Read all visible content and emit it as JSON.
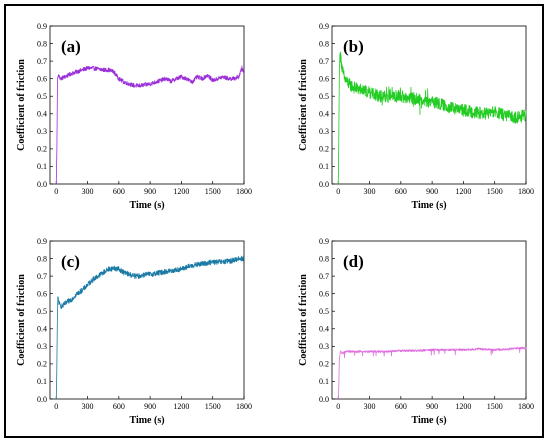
{
  "chart_data": [
    {
      "type": "line",
      "panel_label": "(a)",
      "xlabel": "Time (s)",
      "ylabel": "Coefficient of friction",
      "xlim": [
        -60,
        1800
      ],
      "ylim": [
        0.0,
        0.9
      ],
      "x_ticks": [
        "0",
        "300",
        "600",
        "900",
        "1200",
        "1500",
        "1800"
      ],
      "y_ticks": [
        "0.0",
        "0.1",
        "0.2",
        "0.3",
        "0.4",
        "0.5",
        "0.6",
        "0.7",
        "0.8",
        "0.9"
      ],
      "color": "#9b30d9",
      "noise": 0.012,
      "series": [
        {
          "x": [
            0,
            6,
            12,
            20,
            40,
            80,
            150,
            200,
            250,
            300,
            350,
            400,
            450,
            500,
            550,
            600,
            650,
            700,
            750,
            800,
            850,
            900,
            950,
            1000,
            1050,
            1100,
            1150,
            1200,
            1250,
            1300,
            1350,
            1400,
            1450,
            1500,
            1550,
            1600,
            1650,
            1700,
            1750,
            1780,
            1800
          ],
          "y": [
            0.0,
            0.2,
            0.6,
            0.62,
            0.6,
            0.61,
            0.63,
            0.64,
            0.65,
            0.66,
            0.66,
            0.655,
            0.65,
            0.65,
            0.64,
            0.6,
            0.58,
            0.57,
            0.56,
            0.56,
            0.565,
            0.57,
            0.58,
            0.59,
            0.6,
            0.585,
            0.6,
            0.61,
            0.6,
            0.58,
            0.61,
            0.6,
            0.62,
            0.59,
            0.6,
            0.61,
            0.6,
            0.6,
            0.61,
            0.66,
            0.63
          ]
        }
      ]
    },
    {
      "type": "line",
      "panel_label": "(b)",
      "xlabel": "Time (s)",
      "ylabel": "Coefficient of friction",
      "xlim": [
        -60,
        1800
      ],
      "ylim": [
        0.0,
        0.9
      ],
      "x_ticks": [
        "0",
        "300",
        "600",
        "900",
        "1200",
        "1500",
        "1800"
      ],
      "y_ticks": [
        "0.0",
        "0.1",
        "0.2",
        "0.3",
        "0.4",
        "0.5",
        "0.6",
        "0.7",
        "0.8",
        "0.9"
      ],
      "color": "#22cc22",
      "noise": 0.035,
      "series": [
        {
          "x": [
            0,
            5,
            10,
            15,
            25,
            40,
            60,
            100,
            150,
            200,
            300,
            400,
            500,
            600,
            700,
            800,
            850,
            900,
            950,
            1000,
            1100,
            1200,
            1300,
            1400,
            1500,
            1600,
            1700,
            1800
          ],
          "y": [
            0.0,
            0.25,
            0.6,
            0.73,
            0.72,
            0.65,
            0.6,
            0.57,
            0.55,
            0.54,
            0.52,
            0.5,
            0.5,
            0.5,
            0.49,
            0.48,
            0.47,
            0.47,
            0.46,
            0.45,
            0.43,
            0.42,
            0.41,
            0.4,
            0.41,
            0.39,
            0.38,
            0.39
          ]
        }
      ]
    },
    {
      "type": "line",
      "panel_label": "(c)",
      "xlabel": "Time (s)",
      "ylabel": "Coefficient of friction",
      "xlim": [
        -60,
        1800
      ],
      "ylim": [
        0.0,
        0.9
      ],
      "x_ticks": [
        "0",
        "300",
        "600",
        "900",
        "1200",
        "1500",
        "1800"
      ],
      "y_ticks": [
        "0.0",
        "0.1",
        "0.2",
        "0.3",
        "0.4",
        "0.5",
        "0.6",
        "0.7",
        "0.8",
        "0.9"
      ],
      "color": "#1a7aa5",
      "noise": 0.015,
      "series": [
        {
          "x": [
            0,
            5,
            10,
            15,
            25,
            40,
            60,
            100,
            150,
            200,
            250,
            300,
            350,
            400,
            450,
            500,
            550,
            600,
            650,
            700,
            750,
            800,
            850,
            900,
            1000,
            1100,
            1200,
            1300,
            1400,
            1500,
            1600,
            1700,
            1750,
            1800
          ],
          "y": [
            0.0,
            0.15,
            0.42,
            0.58,
            0.55,
            0.53,
            0.53,
            0.55,
            0.57,
            0.6,
            0.62,
            0.65,
            0.68,
            0.7,
            0.72,
            0.74,
            0.745,
            0.74,
            0.72,
            0.71,
            0.7,
            0.7,
            0.71,
            0.71,
            0.72,
            0.73,
            0.74,
            0.76,
            0.77,
            0.78,
            0.78,
            0.79,
            0.8,
            0.8
          ]
        }
      ]
    },
    {
      "type": "line",
      "panel_label": "(d)",
      "xlabel": "Time (s)",
      "ylabel": "Coefficient of friction",
      "xlim": [
        -60,
        1800
      ],
      "ylim": [
        0.0,
        0.9
      ],
      "x_ticks": [
        "0",
        "300",
        "600",
        "900",
        "1200",
        "1500",
        "1800"
      ],
      "y_ticks": [
        "0.0",
        "0.1",
        "0.2",
        "0.3",
        "0.4",
        "0.5",
        "0.6",
        "0.7",
        "0.8",
        "0.9"
      ],
      "color": "#e070e0",
      "noise": 0.006,
      "series": [
        {
          "x": [
            0,
            5,
            10,
            20,
            40,
            80,
            150,
            300,
            450,
            600,
            750,
            900,
            1050,
            1200,
            1350,
            1500,
            1650,
            1750,
            1800
          ],
          "y": [
            0.0,
            0.06,
            0.22,
            0.27,
            0.26,
            0.27,
            0.27,
            0.27,
            0.27,
            0.275,
            0.275,
            0.28,
            0.28,
            0.28,
            0.285,
            0.28,
            0.285,
            0.29,
            0.29
          ]
        }
      ]
    }
  ]
}
